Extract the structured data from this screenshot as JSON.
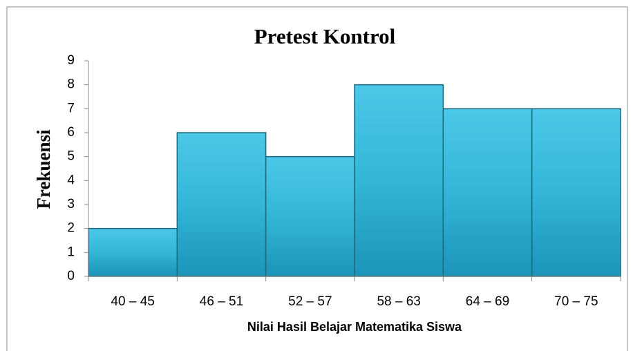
{
  "chart_data": {
    "type": "bar",
    "title": "Pretest Kontrol",
    "x_label": "Nilai Hasil Belajar Matematika Siswa",
    "y_label": "Frekuensi",
    "categories": [
      "40 – 45",
      "46 – 51",
      "52 – 57",
      "58 – 63",
      "64 – 69",
      "70 – 75"
    ],
    "values": [
      2,
      6,
      5,
      8,
      7,
      7
    ],
    "color": "#35b8da",
    "ylim": [
      0,
      9
    ],
    "yticks": [
      0,
      1,
      2,
      3,
      4,
      5,
      6,
      7,
      8,
      9
    ],
    "grid": false
  }
}
